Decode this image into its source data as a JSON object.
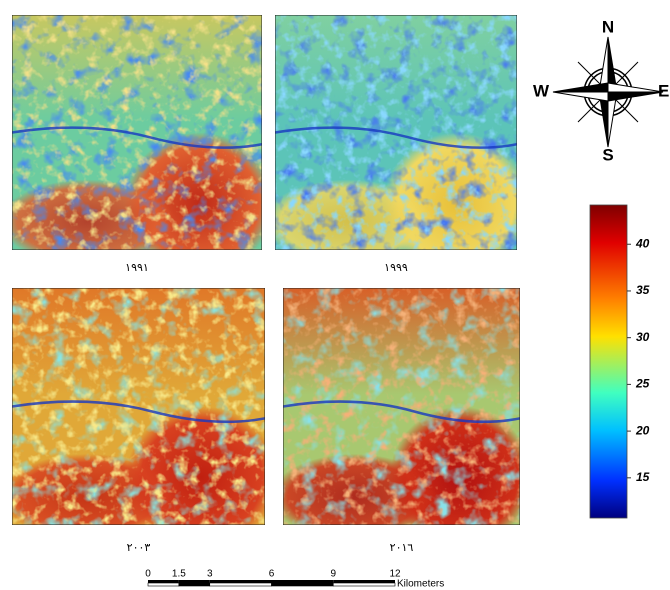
{
  "maps": [
    {
      "year": "١٩٩١"
    },
    {
      "year": "١٩٩٩"
    },
    {
      "year": "٢٠٠٣"
    },
    {
      "year": "٢٠١٦"
    }
  ],
  "compass": {
    "north": "N",
    "east": "E",
    "south": "S",
    "west": "W"
  },
  "color_bar": {
    "range": [
      10.7,
      44.2
    ],
    "ticks": [
      15,
      20,
      25,
      30,
      35,
      40
    ]
  },
  "scale_bar": {
    "ticks": [
      0,
      1.5,
      3,
      6,
      9,
      12
    ],
    "unit": "Kilometers"
  }
}
